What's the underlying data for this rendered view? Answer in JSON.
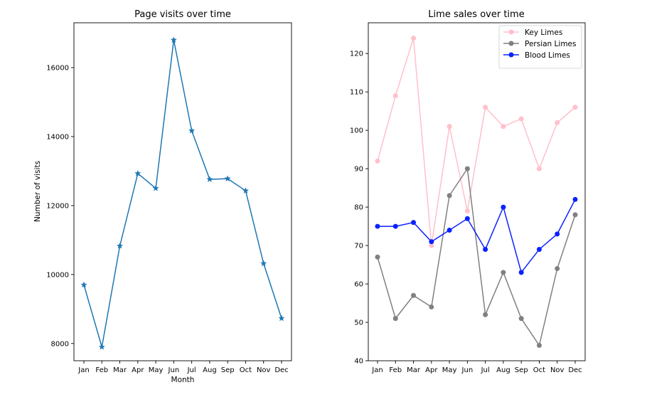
{
  "chart_data": [
    {
      "type": "line",
      "title": "Page visits over time",
      "xlabel": "Month",
      "ylabel": "Number of visits",
      "categories": [
        "Jan",
        "Feb",
        "Mar",
        "Apr",
        "May",
        "Jun",
        "Jul",
        "Aug",
        "Sep",
        "Oct",
        "Nov",
        "Dec"
      ],
      "ylim": [
        7500,
        17300
      ],
      "yticks": [
        8000,
        10000,
        12000,
        14000,
        16000
      ],
      "series": [
        {
          "name": "",
          "color": "#1f77b4",
          "marker": "star",
          "values": [
            9700,
            7900,
            10830,
            12930,
            12500,
            16800,
            14170,
            12760,
            12780,
            12430,
            10320,
            8730
          ]
        }
      ]
    },
    {
      "type": "line",
      "title": "Lime sales over time",
      "xlabel": "",
      "ylabel": "",
      "categories": [
        "Jan",
        "Feb",
        "Mar",
        "Apr",
        "May",
        "Jun",
        "Jul",
        "Aug",
        "Sep",
        "Oct",
        "Nov",
        "Dec"
      ],
      "ylim": [
        40,
        128
      ],
      "yticks": [
        40,
        50,
        60,
        70,
        80,
        90,
        100,
        110,
        120
      ],
      "legend_position": "top-right",
      "series": [
        {
          "name": "Key Limes",
          "color": "#ffc0cb",
          "marker": "circle",
          "values": [
            92,
            109,
            124,
            70,
            101,
            79,
            106,
            101,
            103,
            90,
            102,
            106
          ]
        },
        {
          "name": "Persian Limes",
          "color": "#808080",
          "marker": "circle",
          "values": [
            67,
            51,
            57,
            54,
            83,
            90,
            52,
            63,
            51,
            44,
            64,
            78
          ]
        },
        {
          "name": "Blood Limes",
          "color": "#0a22ff",
          "marker": "circle",
          "values": [
            75,
            75,
            76,
            71,
            74,
            77,
            69,
            80,
            63,
            69,
            73,
            82
          ]
        }
      ]
    }
  ]
}
